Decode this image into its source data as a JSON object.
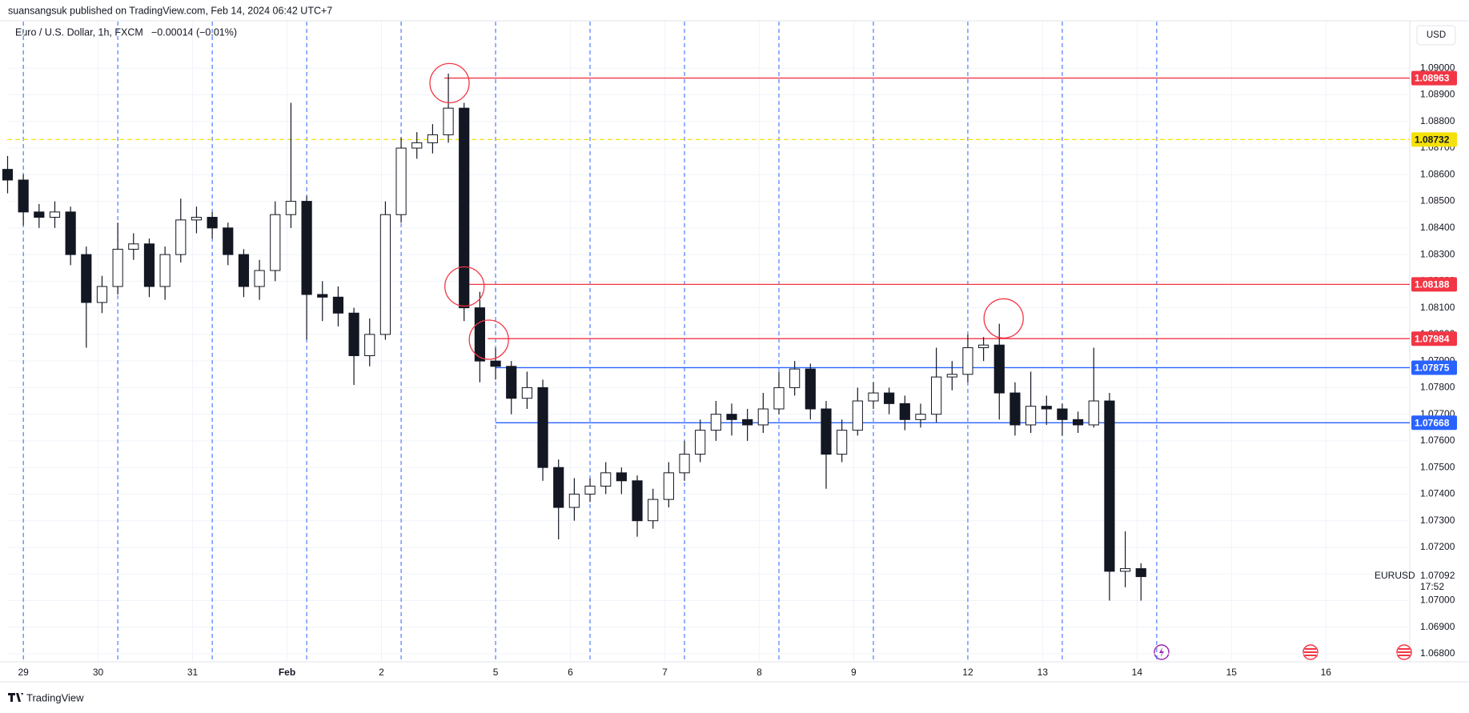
{
  "header": {
    "publisher": "suansangsuk published on TradingView.com, Feb 14, 2024 06:42 UTC+7",
    "brand": "TradingView"
  },
  "chart_data": {
    "type": "candlestick",
    "title": "Euro / U.S. Dollar, 1h, FXCM",
    "change": "−0.00014 (−0.01%)",
    "currency": "USD",
    "x": [
      -4,
      0,
      4,
      8,
      12,
      16,
      20,
      24,
      28,
      32,
      36,
      40,
      44,
      48,
      52,
      56,
      60,
      64,
      68,
      72,
      76,
      80,
      84,
      88,
      92,
      96,
      100,
      104,
      108,
      112,
      116,
      120,
      124,
      128,
      132,
      136,
      140,
      144,
      148,
      152,
      156,
      160,
      164,
      168,
      172,
      176,
      180,
      184,
      188,
      192,
      196,
      200,
      204,
      208,
      212,
      216,
      220,
      224,
      228,
      232,
      236,
      240,
      244,
      248,
      252,
      256,
      260,
      264,
      268,
      272,
      276,
      280,
      284
    ],
    "open": [
      1.0862,
      1.0858,
      1.0846,
      1.0844,
      1.0846,
      1.083,
      1.0812,
      1.0818,
      1.0832,
      1.0834,
      1.0818,
      1.083,
      1.0843,
      1.0844,
      1.084,
      1.083,
      1.0818,
      1.0824,
      1.0845,
      1.085,
      1.0815,
      1.0814,
      1.0808,
      1.0792,
      1.08,
      1.0845,
      1.087,
      1.0872,
      1.0875,
      1.0885,
      1.081,
      1.079,
      1.0788,
      1.0776,
      1.078,
      1.075,
      1.0735,
      1.074,
      1.0743,
      1.0748,
      1.0745,
      1.073,
      1.0738,
      1.0748,
      1.0755,
      1.0764,
      1.077,
      1.0768,
      1.0766,
      1.0772,
      1.078,
      1.0787,
      1.0772,
      1.0755,
      1.0764,
      1.0775,
      1.0778,
      1.0774,
      1.0768,
      1.077,
      1.0784,
      1.0785,
      1.0795,
      1.0796,
      1.0778,
      1.0766,
      1.0773,
      1.0772,
      1.0768,
      1.0766,
      1.0775,
      1.0711,
      1.0712
    ],
    "high": [
      1.0867,
      1.086,
      1.0849,
      1.085,
      1.0848,
      1.0833,
      1.0822,
      1.0842,
      1.0838,
      1.0836,
      1.0833,
      1.0851,
      1.0848,
      1.0846,
      1.0842,
      1.0832,
      1.0828,
      1.085,
      1.0887,
      1.0852,
      1.082,
      1.0818,
      1.081,
      1.0806,
      1.085,
      1.0874,
      1.0876,
      1.0879,
      1.0898,
      1.0887,
      1.0816,
      1.0795,
      1.079,
      1.0786,
      1.0783,
      1.0753,
      1.0746,
      1.0746,
      1.0752,
      1.075,
      1.0747,
      1.0742,
      1.0752,
      1.076,
      1.0768,
      1.0775,
      1.0774,
      1.0772,
      1.0778,
      1.0786,
      1.079,
      1.0789,
      1.0775,
      1.0768,
      1.078,
      1.0782,
      1.078,
      1.0777,
      1.0774,
      1.0795,
      1.079,
      1.08,
      1.0799,
      1.0804,
      1.0782,
      1.0786,
      1.0777,
      1.0774,
      1.0771,
      1.0795,
      1.0778,
      1.0726,
      1.0714
    ],
    "low": [
      1.0853,
      1.0841,
      1.084,
      1.084,
      1.0826,
      1.0795,
      1.0808,
      1.0815,
      1.0828,
      1.0814,
      1.0813,
      1.0827,
      1.0838,
      1.0836,
      1.0826,
      1.0814,
      1.0813,
      1.082,
      1.084,
      1.0798,
      1.0805,
      1.0803,
      1.0781,
      1.0788,
      1.0798,
      1.0842,
      1.0866,
      1.0868,
      1.0872,
      1.0805,
      1.0782,
      1.0783,
      1.077,
      1.0772,
      1.0745,
      1.0723,
      1.073,
      1.0737,
      1.074,
      1.074,
      1.0724,
      1.0727,
      1.0735,
      1.0745,
      1.0752,
      1.076,
      1.0762,
      1.076,
      1.0763,
      1.077,
      1.0777,
      1.0768,
      1.0742,
      1.0752,
      1.0762,
      1.0772,
      1.077,
      1.0764,
      1.0765,
      1.0767,
      1.0779,
      1.0782,
      1.079,
      1.0768,
      1.0762,
      1.0763,
      1.0766,
      1.0762,
      1.0763,
      1.0765,
      1.07,
      1.0705,
      1.07
    ],
    "close": [
      1.0858,
      1.0846,
      1.0844,
      1.0846,
      1.083,
      1.0812,
      1.0818,
      1.0832,
      1.0834,
      1.0818,
      1.083,
      1.0843,
      1.0844,
      1.084,
      1.083,
      1.0818,
      1.0824,
      1.0845,
      1.085,
      1.0815,
      1.0814,
      1.0808,
      1.0792,
      1.08,
      1.0845,
      1.087,
      1.0872,
      1.0875,
      1.0885,
      1.081,
      1.079,
      1.0788,
      1.0776,
      1.078,
      1.075,
      1.0735,
      1.074,
      1.0743,
      1.0748,
      1.0745,
      1.073,
      1.0738,
      1.0748,
      1.0755,
      1.0764,
      1.077,
      1.0768,
      1.0766,
      1.0772,
      1.078,
      1.0787,
      1.0772,
      1.0755,
      1.0764,
      1.0775,
      1.0778,
      1.0774,
      1.0768,
      1.077,
      1.0784,
      1.0785,
      1.0795,
      1.0796,
      1.0778,
      1.0766,
      1.0773,
      1.0772,
      1.0768,
      1.0766,
      1.0775,
      1.0711,
      1.0712,
      1.0709
    ],
    "xlim": [
      -4.1,
      352.3
    ],
    "ylim": [
      1.06773,
      1.09088
    ],
    "xticks": [
      {
        "value": 0,
        "label": "29"
      },
      {
        "value": 19,
        "label": "30"
      },
      {
        "value": 43,
        "label": "31"
      },
      {
        "value": 67,
        "label": "Feb"
      },
      {
        "value": 91,
        "label": "2"
      },
      {
        "value": 120,
        "label": "5"
      },
      {
        "value": 139,
        "label": "6"
      },
      {
        "value": 163,
        "label": "7"
      },
      {
        "value": 187,
        "label": "8"
      },
      {
        "value": 211,
        "label": "9"
      },
      {
        "value": 240,
        "label": "12"
      },
      {
        "value": 259,
        "label": "13"
      },
      {
        "value": 283,
        "label": "14"
      },
      {
        "value": 307,
        "label": "15"
      },
      {
        "value": 331,
        "label": "16"
      }
    ],
    "yticks": [
      {
        "value": 1.068,
        "label": "1.06800"
      },
      {
        "value": 1.069,
        "label": "1.06900"
      },
      {
        "value": 1.07,
        "label": "1.07000"
      },
      {
        "value": 1.071,
        "label": "1.07100"
      },
      {
        "value": 1.072,
        "label": "1.07200"
      },
      {
        "value": 1.073,
        "label": "1.07300"
      },
      {
        "value": 1.074,
        "label": "1.07400"
      },
      {
        "value": 1.075,
        "label": "1.07500"
      },
      {
        "value": 1.076,
        "label": "1.07600"
      },
      {
        "value": 1.077,
        "label": "1.07700"
      },
      {
        "value": 1.078,
        "label": "1.07800"
      },
      {
        "value": 1.079,
        "label": "1.07900"
      },
      {
        "value": 1.08,
        "label": "1.08000"
      },
      {
        "value": 1.081,
        "label": "1.08100"
      },
      {
        "value": 1.082,
        "label": "1.08200"
      },
      {
        "value": 1.083,
        "label": "1.08300"
      },
      {
        "value": 1.084,
        "label": "1.08400"
      },
      {
        "value": 1.085,
        "label": "1.08500"
      },
      {
        "value": 1.086,
        "label": "1.08600"
      },
      {
        "value": 1.087,
        "label": "1.08700"
      },
      {
        "value": 1.088,
        "label": "1.08800"
      },
      {
        "value": 1.089,
        "label": "1.08900"
      },
      {
        "value": 1.09,
        "label": "1.09000"
      }
    ],
    "session_lines": [
      0,
      24,
      48,
      72,
      96,
      120,
      144,
      168,
      192,
      216,
      240,
      264,
      288
    ],
    "levels": [
      {
        "value": 1.08963,
        "color": "#f23645",
        "start": 107
      },
      {
        "value": 1.08732,
        "color": "#f5e10a",
        "style": "dashed"
      },
      {
        "value": 1.08188,
        "color": "#f23645",
        "start": 112
      },
      {
        "value": 1.07984,
        "color": "#f23645",
        "start": 118
      },
      {
        "value": 1.07875,
        "color": "#2962ff",
        "start": 120
      },
      {
        "value": 1.07668,
        "color": "#2962ff",
        "start": 120
      }
    ],
    "circles": [
      {
        "x": 108.3,
        "y": 1.08944
      },
      {
        "x": 112.1,
        "y": 1.0818
      },
      {
        "x": 118.3,
        "y": 1.0798
      },
      {
        "x": 249.1,
        "y": 1.0806
      }
    ],
    "last": {
      "symbol": "EURUSD",
      "value": 1.07092,
      "countdown": "17:52"
    },
    "grid": true
  }
}
